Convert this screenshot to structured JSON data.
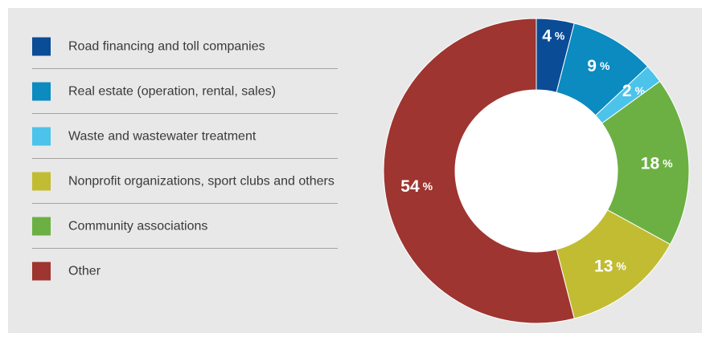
{
  "chart_data": {
    "type": "pie",
    "categories": [
      "Road financing and toll companies",
      "Real estate (operation, rental, sales)",
      "Waste and wastewater treatment",
      "Nonprofit organizations, sport clubs and others",
      "Community associations",
      "Other"
    ],
    "values": [
      4,
      9,
      2,
      18,
      13,
      54
    ],
    "slice_categories": [
      "Road financing and toll companies",
      "Real estate (operation, rental, sales)",
      "Waste and wastewater treatment",
      "Community associations",
      "Nonprofit organizations, sport clubs and others",
      "Other"
    ],
    "unit": "%",
    "colors": [
      "#0a4c96",
      "#0b8bc0",
      "#4cc3ea",
      "#6cb044",
      "#c2bc33",
      "#9e3530"
    ],
    "donut": true,
    "legend": "left",
    "title": "",
    "slice_labels": [
      {
        "value": "4",
        "unit": "%"
      },
      {
        "value": "9",
        "unit": "%"
      },
      {
        "value": "2",
        "unit": "%"
      },
      {
        "value": "18",
        "unit": "%"
      },
      {
        "value": "13",
        "unit": "%"
      },
      {
        "value": "54",
        "unit": "%"
      }
    ]
  },
  "legend": {
    "items": [
      {
        "label": "Road financing and toll companies",
        "color": "#0a4c96"
      },
      {
        "label": "Real estate (operation, rental, sales)",
        "color": "#0b8bc0"
      },
      {
        "label": "Waste and wastewater treatment",
        "color": "#4cc3ea"
      },
      {
        "label": "Nonprofit organizations, sport clubs and others",
        "color": "#c2bc33"
      },
      {
        "label": "Community associations",
        "color": "#6cb044"
      },
      {
        "label": "Other",
        "color": "#9e3530"
      }
    ]
  }
}
